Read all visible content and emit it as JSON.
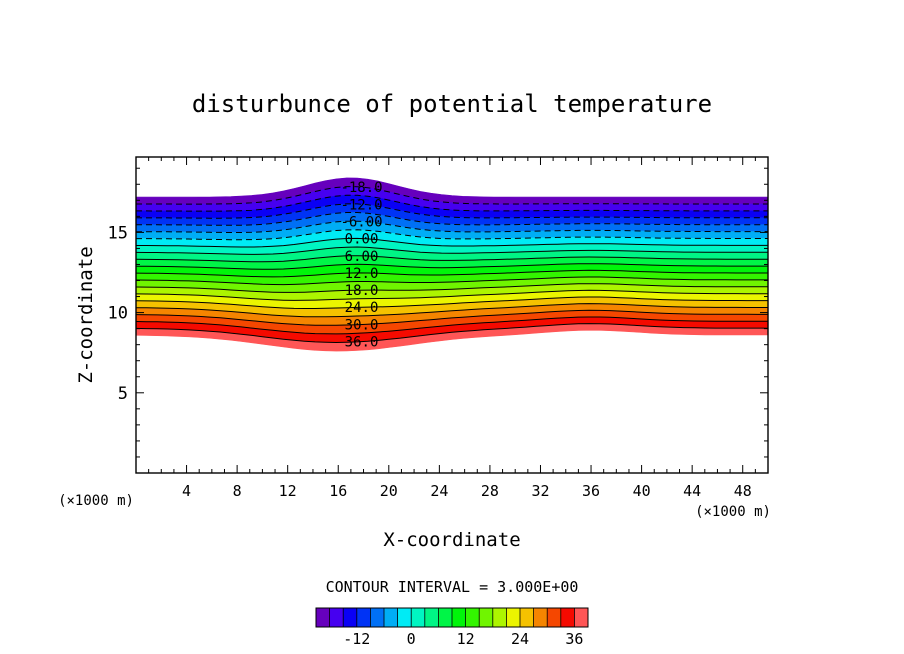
{
  "chart_data": {
    "type": "contour",
    "title": "disturbunce of potential temperature",
    "xlabel": "X-coordinate",
    "ylabel": "Z-coordinate",
    "x_unit_left": "(×1000 m)",
    "x_unit_right": "(×1000 m)",
    "xlim": [
      0,
      50
    ],
    "ylim": [
      0,
      19.7
    ],
    "x_ticks": [
      4,
      8,
      12,
      16,
      20,
      24,
      28,
      32,
      36,
      40,
      44,
      48
    ],
    "x_tick_labels": [
      "4",
      "8",
      "12",
      "16",
      "20",
      "24",
      "28",
      "32",
      "36",
      "40",
      "44",
      "48"
    ],
    "y_ticks": [
      5,
      10,
      15
    ],
    "y_tick_labels": [
      "5",
      "10",
      "15"
    ],
    "contour_interval_label": "CONTOUR INTERVAL = 3.000E+00",
    "contour_interval": 3,
    "value_range": [
      -21,
      39
    ],
    "field": {
      "top_baseline_z": 17.2,
      "top_bump": {
        "center_x": 17,
        "width_x": 5,
        "height_z": 1.2
      },
      "bottom_baseline_z": 8.6,
      "bottom_dip": {
        "center_x": 16,
        "width_x": 8,
        "depth_z": 1.0
      },
      "right_bump": {
        "center_x": 36,
        "width_x": 5,
        "height_z": 0.3
      }
    },
    "contour_labels": [
      {
        "text": "-18.0",
        "value": -18
      },
      {
        "text": "-12.0",
        "value": -12
      },
      {
        "text": "-6.00",
        "value": -6
      },
      {
        "text": "0.00",
        "value": 0
      },
      {
        "text": "6.00",
        "value": 6
      },
      {
        "text": "12.0",
        "value": 12
      },
      {
        "text": "18.0",
        "value": 18
      },
      {
        "text": "24.0",
        "value": 24
      },
      {
        "text": "30.0",
        "value": 30
      },
      {
        "text": "36.0",
        "value": 36
      }
    ],
    "colorbar": {
      "min": -21,
      "max": 39,
      "ticks": [
        -12,
        0,
        12,
        24,
        36
      ],
      "tick_labels": [
        "-12",
        "0",
        "12",
        "24",
        "36"
      ]
    }
  }
}
